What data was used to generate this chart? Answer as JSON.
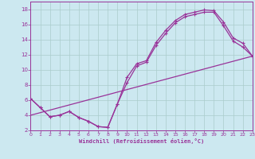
{
  "xlabel": "Windchill (Refroidissement éolien,°C)",
  "line_color": "#993399",
  "bg_color": "#cce8f0",
  "grid_color": "#aacccc",
  "xlim": [
    0,
    23
  ],
  "ylim": [
    2,
    19
  ],
  "xticks": [
    0,
    1,
    2,
    3,
    4,
    5,
    6,
    7,
    8,
    9,
    10,
    11,
    12,
    13,
    14,
    15,
    16,
    17,
    18,
    19,
    20,
    21,
    22,
    23
  ],
  "yticks": [
    2,
    4,
    6,
    8,
    10,
    12,
    14,
    16,
    18
  ],
  "curve1_x": [
    0,
    1,
    2,
    3,
    4,
    5,
    6,
    7,
    8,
    9,
    10,
    11,
    12,
    13,
    14,
    15,
    16,
    17,
    18,
    19,
    20,
    21,
    22,
    23
  ],
  "curve1_y": [
    6.2,
    5.0,
    3.8,
    4.0,
    4.5,
    3.7,
    3.2,
    2.5,
    2.4,
    5.5,
    9.0,
    10.8,
    11.2,
    13.6,
    15.2,
    16.5,
    17.3,
    17.6,
    17.9,
    17.8,
    16.3,
    14.2,
    13.5,
    11.8
  ],
  "curve2_x": [
    0,
    1,
    2,
    3,
    4,
    5,
    6,
    7,
    8,
    9,
    10,
    11,
    12,
    13,
    14,
    15,
    16,
    17,
    18,
    19,
    20,
    21,
    22,
    23
  ],
  "curve2_y": [
    6.2,
    5.0,
    3.8,
    4.0,
    4.5,
    3.7,
    3.2,
    2.5,
    2.4,
    5.5,
    8.3,
    10.5,
    11.0,
    13.2,
    14.8,
    16.2,
    17.0,
    17.3,
    17.6,
    17.6,
    15.8,
    13.8,
    13.0,
    11.8
  ],
  "line3_x": [
    0,
    23
  ],
  "line3_y": [
    4.0,
    11.8
  ]
}
